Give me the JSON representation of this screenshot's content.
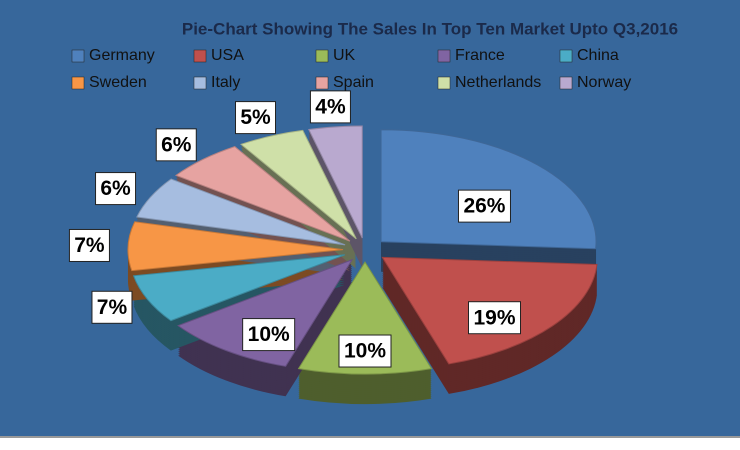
{
  "chart_data": {
    "type": "pie",
    "title": "Pie-Chart Showing The Sales In Top Ten Market Upto Q3,2016",
    "categories": [
      "Germany",
      "USA",
      "UK",
      "France",
      "China",
      "Sweden",
      "Italy",
      "Spain",
      "Netherlands",
      "Norway"
    ],
    "values": [
      26,
      19,
      10,
      10,
      7,
      7,
      6,
      6,
      5,
      4
    ],
    "value_labels": [
      "26%",
      "19%",
      "10%",
      "10%",
      "7%",
      "7%",
      "6%",
      "6%",
      "5%",
      "4%"
    ],
    "colors": [
      "#4f81bd",
      "#c0504d",
      "#9bbb59",
      "#8064a2",
      "#4bacc6",
      "#f79646",
      "#a6bde0",
      "#e6a3a1",
      "#cfe0a8",
      "#b9a9cf"
    ]
  }
}
